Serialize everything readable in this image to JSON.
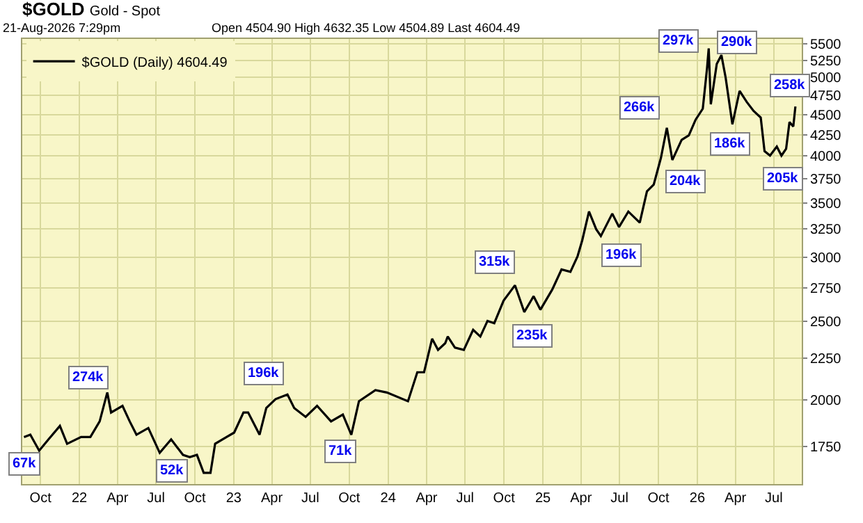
{
  "chart_data": {
    "type": "line",
    "title": "$GOLD",
    "subtitle": "Gold - Spot",
    "annotations": [
      "21-Aug-2026 7:29pm",
      "Open 4504.90 High 4632.35 Low 4504.89 Last 4604.49",
      {
        "text": "67k",
        "x": "2021-08-25",
        "y": 1667
      },
      {
        "text": "274k",
        "x": "2022-01-21",
        "y": 2129
      },
      {
        "text": "52k",
        "x": "2022-08-08",
        "y": 1635
      },
      {
        "text": "196k",
        "x": "2023-03-13",
        "y": 2153
      },
      {
        "text": "71k",
        "x": "2023-09-09",
        "y": 1724
      },
      {
        "text": "315k",
        "x": "2024-09-08",
        "y": 2959
      },
      {
        "text": "235k",
        "x": "2024-12-08",
        "y": 2393
      },
      {
        "text": "196k",
        "x": "2025-07-06",
        "y": 3017
      },
      {
        "text": "266k",
        "x": "2025-08-18",
        "y": 4594
      },
      {
        "text": "204k",
        "x": "2025-12-04",
        "y": 3720
      },
      {
        "text": "297k",
        "x": "2025-11-18",
        "y": 5540
      },
      {
        "text": "290k",
        "x": "2026-04-05",
        "y": 5520
      },
      {
        "text": "186k",
        "x": "2026-03-19",
        "y": 4133
      },
      {
        "text": "205k",
        "x": "2026-07-24",
        "y": 3744
      },
      {
        "text": "258k",
        "x": "2026-08-08",
        "y": 4880
      }
    ],
    "log": true,
    "grid": true,
    "legend": "top left",
    "xlim": [
      "2021-08-19",
      "2026-09-05"
    ],
    "xticks": [
      {
        "value": "2021-10-01",
        "label": "Oct"
      },
      {
        "value": "2022-01-01",
        "label": "22"
      },
      {
        "value": "2022-04-01",
        "label": "Apr"
      },
      {
        "value": "2022-07-01",
        "label": "Jul"
      },
      {
        "value": "2022-10-01",
        "label": "Oct"
      },
      {
        "value": "2023-01-01",
        "label": "23"
      },
      {
        "value": "2023-04-01",
        "label": "Apr"
      },
      {
        "value": "2023-07-01",
        "label": "Jul"
      },
      {
        "value": "2023-10-01",
        "label": "Oct"
      },
      {
        "value": "2024-01-01",
        "label": "24"
      },
      {
        "value": "2024-04-01",
        "label": "Apr"
      },
      {
        "value": "2024-07-01",
        "label": "Jul"
      },
      {
        "value": "2024-10-01",
        "label": "Oct"
      },
      {
        "value": "2025-01-01",
        "label": "25"
      },
      {
        "value": "2025-04-01",
        "label": "Apr"
      },
      {
        "value": "2025-07-01",
        "label": "Jul"
      },
      {
        "value": "2025-10-01",
        "label": "Oct"
      },
      {
        "value": "2026-01-01",
        "label": "26"
      },
      {
        "value": "2026-04-01",
        "label": "Apr"
      },
      {
        "value": "2026-07-01",
        "label": "Jul"
      }
    ],
    "ylim": [
      1573,
      5580
    ],
    "yticks": [
      1750,
      2000,
      2250,
      2500,
      2750,
      3000,
      3250,
      3500,
      3750,
      4000,
      4250,
      4500,
      4750,
      5000,
      5250,
      5500
    ],
    "x": [
      "2021-08-23",
      "2021-09-07",
      "2021-09-28",
      "2021-10-20",
      "2021-11-16",
      "2021-12-03",
      "2022-01-05",
      "2022-01-27",
      "2022-02-18",
      "2022-03-08",
      "2022-03-17",
      "2022-04-13",
      "2022-04-30",
      "2022-05-16",
      "2022-06-13",
      "2022-07-10",
      "2022-08-06",
      "2022-09-03",
      "2022-09-19",
      "2022-10-06",
      "2022-10-22",
      "2022-11-07",
      "2022-11-18",
      "2022-12-15",
      "2023-01-02",
      "2023-01-24",
      "2023-02-04",
      "2023-03-03",
      "2023-03-19",
      "2023-04-10",
      "2023-05-08",
      "2023-05-24",
      "2023-06-20",
      "2023-07-17",
      "2023-08-19",
      "2023-09-16",
      "2023-10-06",
      "2023-10-24",
      "2023-12-02",
      "2023-12-29",
      "2024-02-17",
      "2024-03-10",
      "2024-03-26",
      "2024-04-14",
      "2024-04-28",
      "2024-05-15",
      "2024-05-21",
      "2024-06-07",
      "2024-06-28",
      "2024-07-20",
      "2024-08-06",
      "2024-08-23",
      "2024-09-08",
      "2024-09-30",
      "2024-10-27",
      "2024-11-18",
      "2024-12-10",
      "2024-12-26",
      "2025-01-23",
      "2025-02-14",
      "2025-03-07",
      "2025-03-24",
      "2025-04-04",
      "2025-04-20",
      "2025-05-07",
      "2025-05-18",
      "2025-06-14",
      "2025-06-30",
      "2025-07-22",
      "2025-08-18",
      "2025-09-04",
      "2025-09-20",
      "2025-10-07",
      "2025-10-21",
      "2025-11-03",
      "2025-11-25",
      "2025-12-12",
      "2025-12-28",
      "2026-01-14",
      "2026-01-24",
      "2026-01-28",
      "2026-02-02",
      "2026-02-16",
      "2026-02-27",
      "2026-03-09",
      "2026-03-25",
      "2026-04-11",
      "2026-04-28",
      "2026-05-14",
      "2026-05-31",
      "2026-06-09",
      "2026-06-22",
      "2026-07-08",
      "2026-07-19",
      "2026-07-30",
      "2026-08-07",
      "2026-08-16",
      "2026-08-21"
    ],
    "series": [
      {
        "name": "$GOLD (Daily) 4604.49",
        "color": "#000000",
        "values": [
          1798,
          1810,
          1730,
          1786,
          1856,
          1764,
          1798,
          1798,
          1880,
          2041,
          1928,
          1965,
          1880,
          1810,
          1845,
          1719,
          1786,
          1709,
          1698,
          1709,
          1624,
          1624,
          1764,
          1798,
          1821,
          1928,
          1928,
          1810,
          1953,
          2003,
          2029,
          1953,
          1904,
          1965,
          1880,
          1917,
          1810,
          1991,
          2055,
          2041,
          1991,
          2162,
          2162,
          2378,
          2304,
          2348,
          2393,
          2319,
          2304,
          2439,
          2393,
          2502,
          2486,
          2650,
          2769,
          2566,
          2684,
          2583,
          2735,
          2896,
          2877,
          3008,
          3147,
          3415,
          3247,
          3185,
          3395,
          3268,
          3415,
          3309,
          3617,
          3687,
          3978,
          4334,
          3954,
          4188,
          4241,
          4434,
          4576,
          5130,
          5431,
          4634,
          5196,
          5330,
          5000,
          4377,
          4813,
          4664,
          4547,
          4461,
          4055,
          4004,
          4109,
          4004,
          4082,
          4405,
          4350,
          4604.49
        ]
      }
    ]
  }
}
